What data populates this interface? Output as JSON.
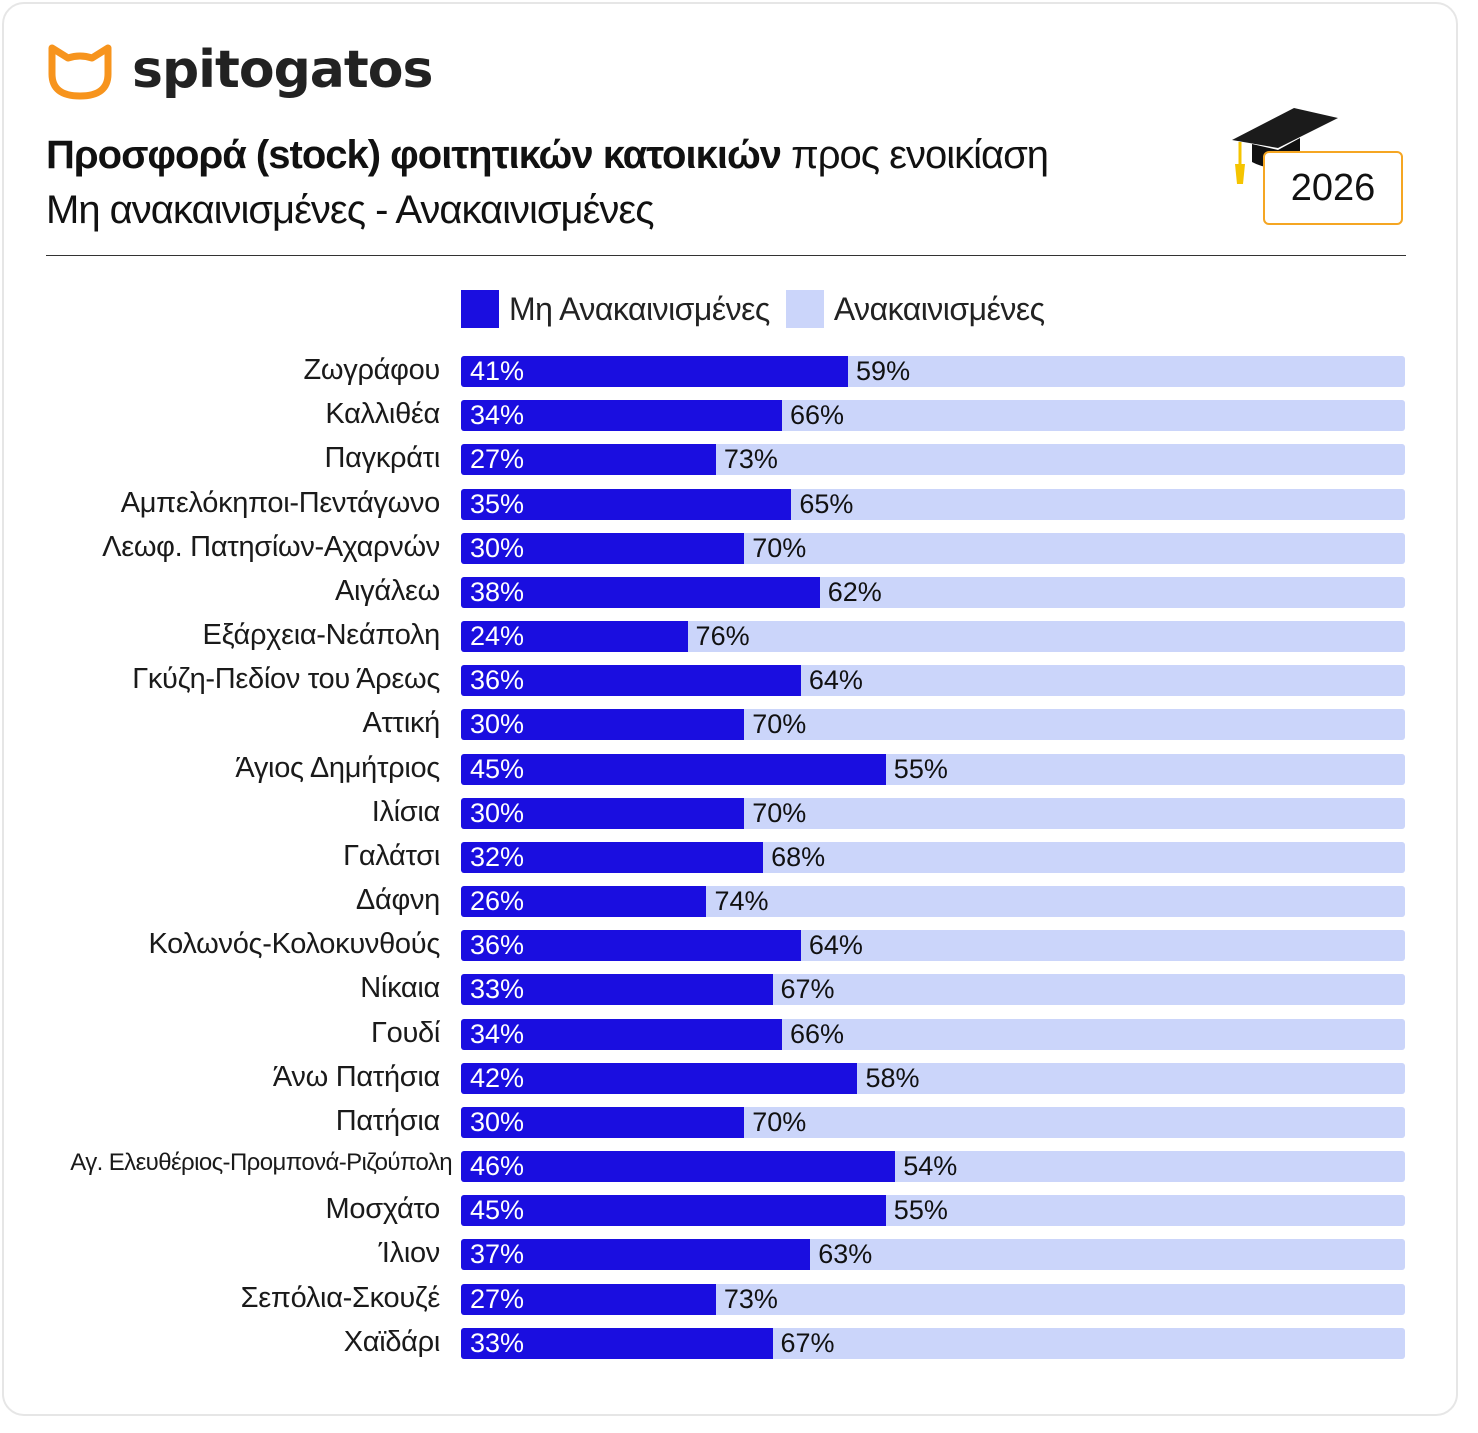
{
  "brand": {
    "name": "spitogatos",
    "icon": "cat-head-icon",
    "color": "#f7941d"
  },
  "header": {
    "title_bold": "Προσφορά (stock) φοιτητικών κατοικιών",
    "title_rest": "προς ενοικίαση",
    "subtitle": "Μη ανακαινισμένες - Ανακαινισμένες",
    "year": "2026",
    "year_icon": "graduation-cap-icon"
  },
  "chart_data": {
    "type": "bar",
    "orientation": "horizontal",
    "stacked": true,
    "normalized": true,
    "legend_position": "top",
    "grid": false,
    "xlim": [
      0,
      100
    ],
    "colors": {
      "non_renovated": "#1a0ee0",
      "renovated": "#cbd5fa"
    },
    "series": [
      {
        "name": "Μη Ανακαινισμένες",
        "values": [
          41,
          34,
          27,
          35,
          30,
          38,
          24,
          36,
          30,
          45,
          30,
          32,
          26,
          36,
          33,
          34,
          42,
          30,
          46,
          45,
          37,
          27,
          33
        ]
      },
      {
        "name": "Ανακαινισμένες",
        "values": [
          59,
          66,
          73,
          65,
          70,
          62,
          76,
          64,
          70,
          55,
          70,
          68,
          74,
          64,
          67,
          66,
          58,
          70,
          54,
          55,
          63,
          73,
          67
        ]
      }
    ],
    "categories": [
      "Ζωγράφου",
      "Καλλιθέα",
      "Παγκράτι",
      "Αμπελόκηποι-Πεντάγωνο",
      "Λεωφ. Πατησίων-Αχαρνών",
      "Αιγάλεω",
      "Εξάρχεια-Νεάπολη",
      "Γκύζη-Πεδίον του Άρεως",
      "Αττική",
      "Άγιος Δημήτριος",
      "Ιλίσια",
      "Γαλάτσι",
      "Δάφνη",
      "Κολωνός-Κολοκυνθούς",
      "Νίκαια",
      "Γουδί",
      "Άνω Πατήσια",
      "Πατήσια",
      "Αγ. Ελευθέριος-Προμπονά-Ριζούπολη",
      "Μοσχάτο",
      "Ίλιον",
      "Σεπόλια-Σκουζέ",
      "Χαϊδάρι"
    ]
  }
}
